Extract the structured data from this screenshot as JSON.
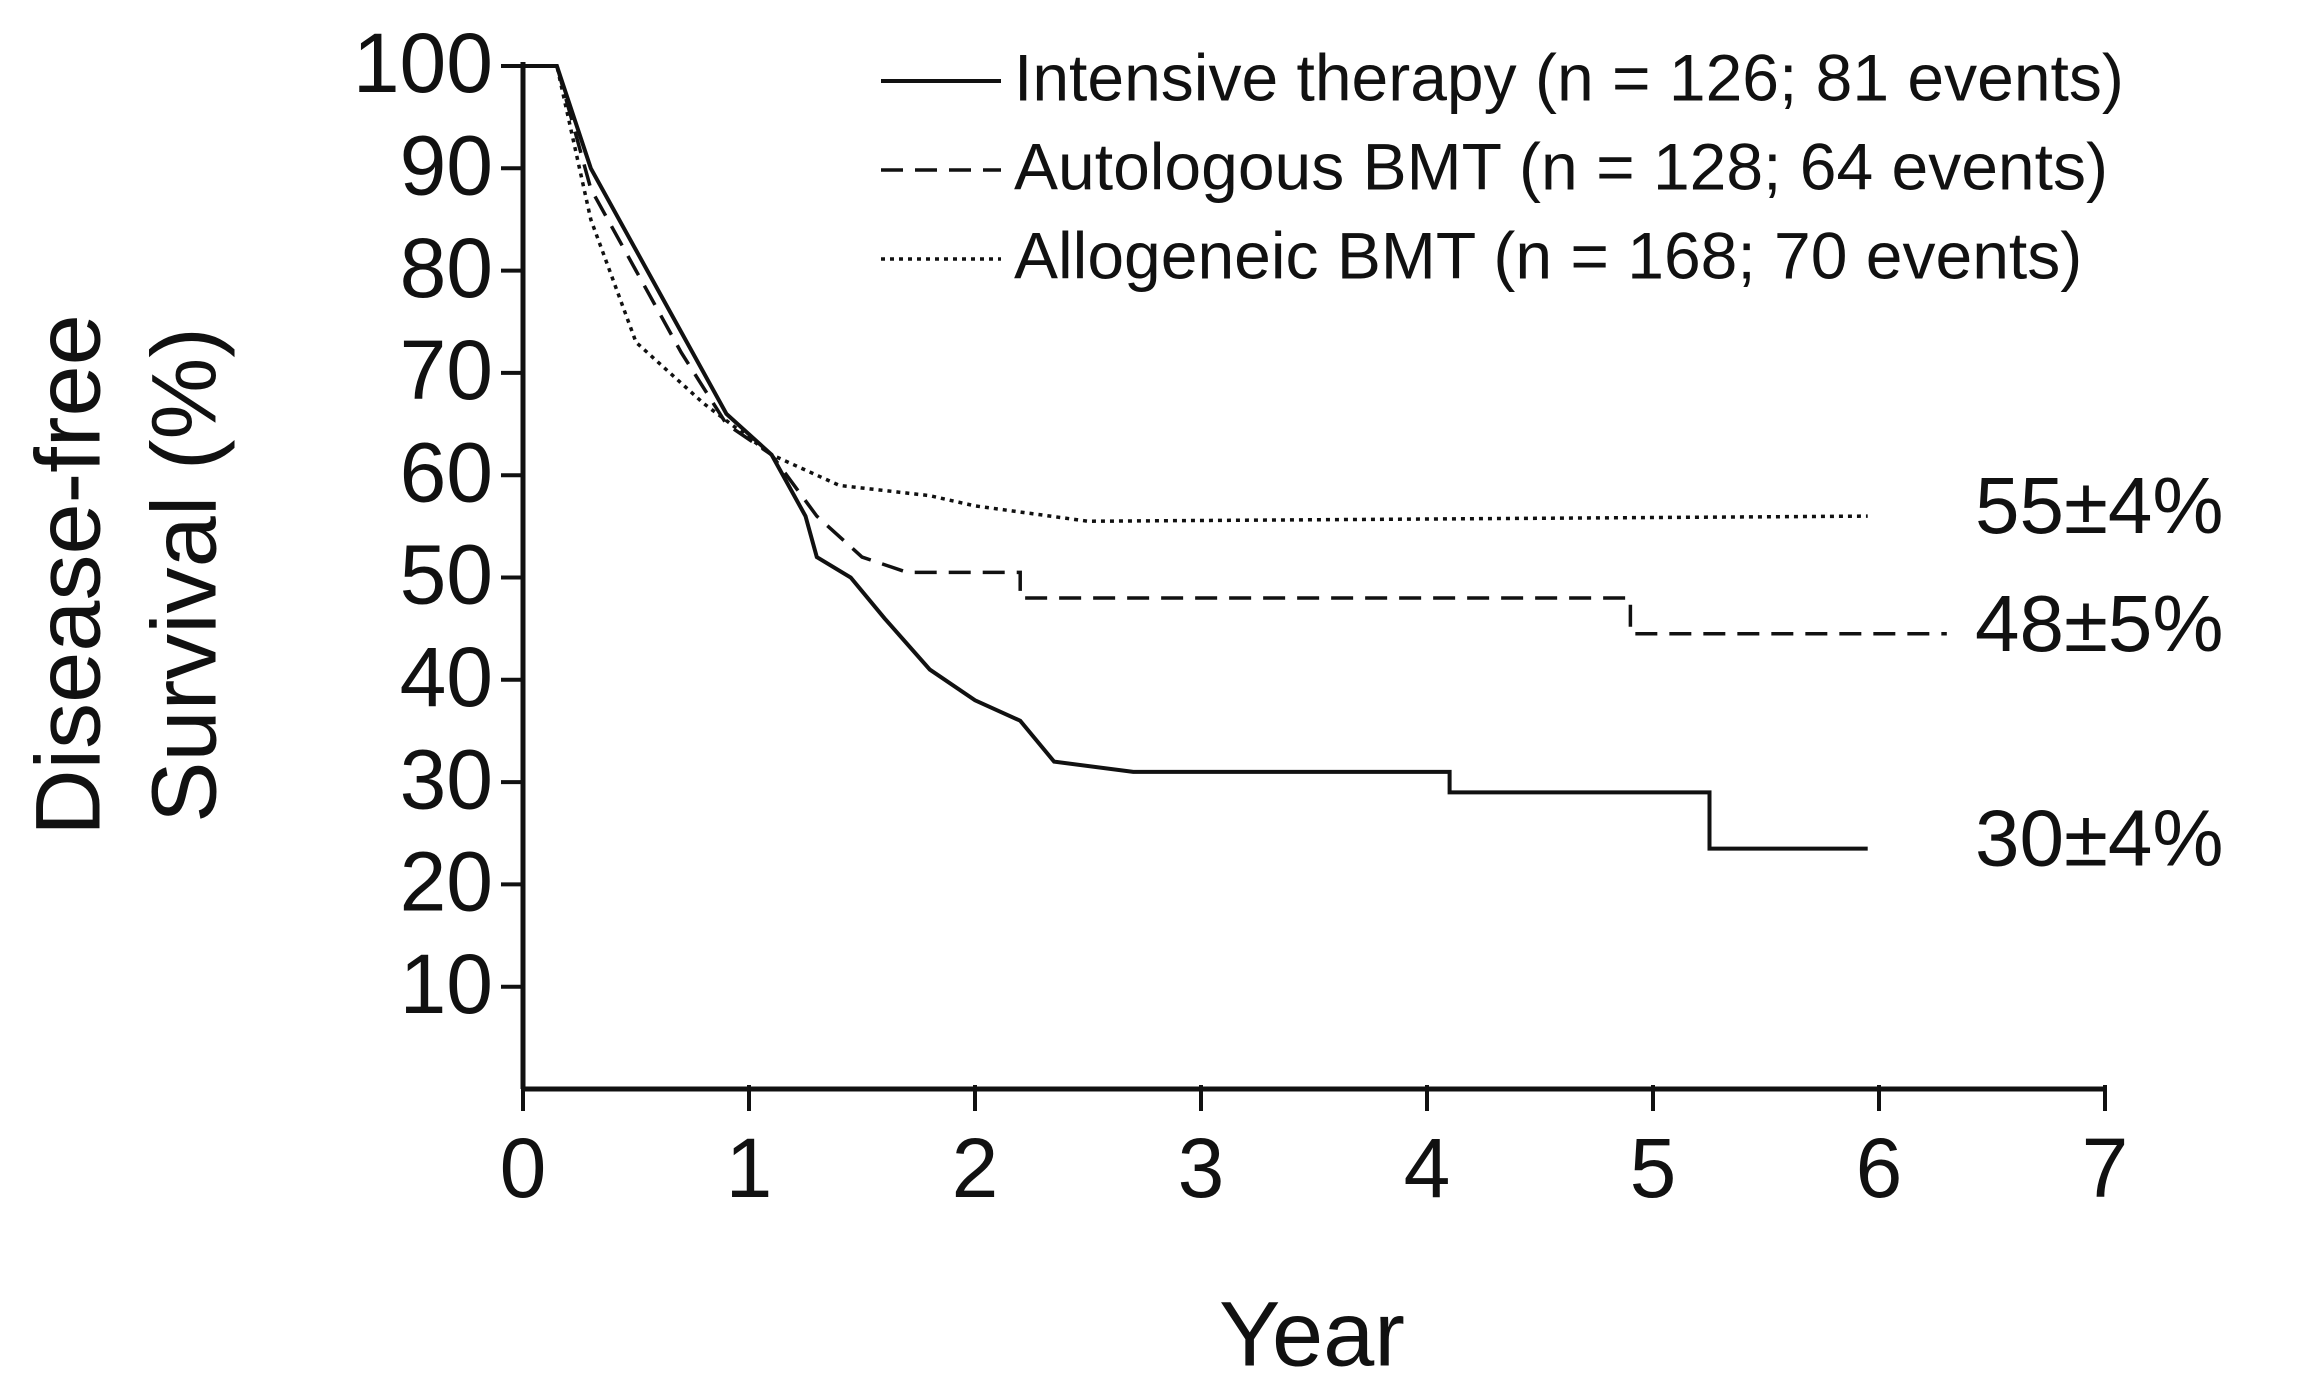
{
  "chart_data": {
    "type": "line",
    "xlabel": "Year",
    "ylabel": [
      "Disease-free",
      "Survival (%)"
    ],
    "xlim": [
      0,
      7
    ],
    "xticks": [
      0,
      1,
      2,
      3,
      4,
      5,
      6,
      7
    ],
    "ylim": [
      0,
      100
    ],
    "yticks": [
      10,
      20,
      30,
      40,
      50,
      60,
      70,
      80,
      90,
      100
    ],
    "grid": false,
    "legend": "top-right",
    "series": [
      {
        "name": "Intensive therapy (n = 126; 81 events)",
        "color": "#111111",
        "dash": "solid",
        "end_label": "30±4%",
        "x": [
          0,
          0.15,
          0.3,
          0.5,
          0.7,
          0.9,
          1.1,
          1.25,
          1.3,
          1.45,
          1.6,
          1.8,
          2,
          2.2,
          2.35,
          2.7,
          4.1,
          4.1,
          5.25,
          5.25,
          5.95
        ],
        "values": [
          100,
          100,
          90,
          82,
          74,
          66,
          62,
          56,
          52,
          50,
          46,
          41,
          38,
          36,
          32,
          31,
          31,
          29,
          29,
          23.5,
          23.5
        ]
      },
      {
        "name": "Autologous BMT (n = 128; 64 events)",
        "color": "#111111",
        "dash": "dashed",
        "end_label": "48±5%",
        "x": [
          0,
          0.15,
          0.3,
          0.5,
          0.7,
          0.9,
          1.1,
          1.3,
          1.5,
          1.7,
          2.2,
          2.2,
          4.9,
          4.9,
          6.3
        ],
        "values": [
          100,
          100,
          88,
          80,
          72,
          65,
          62,
          56,
          52,
          50.5,
          50.5,
          48,
          48,
          44.5,
          44.5
        ]
      },
      {
        "name": "Allogeneic BMT (n = 168; 70 events)",
        "color": "#111111",
        "dash": "dotted",
        "end_label": "55±4%",
        "x": [
          0,
          0.15,
          0.3,
          0.5,
          0.8,
          1.1,
          1.4,
          1.8,
          2,
          2.5,
          5.95
        ],
        "values": [
          100,
          100,
          85,
          73,
          67,
          62,
          59,
          58,
          57,
          55.5,
          56
        ]
      }
    ]
  }
}
